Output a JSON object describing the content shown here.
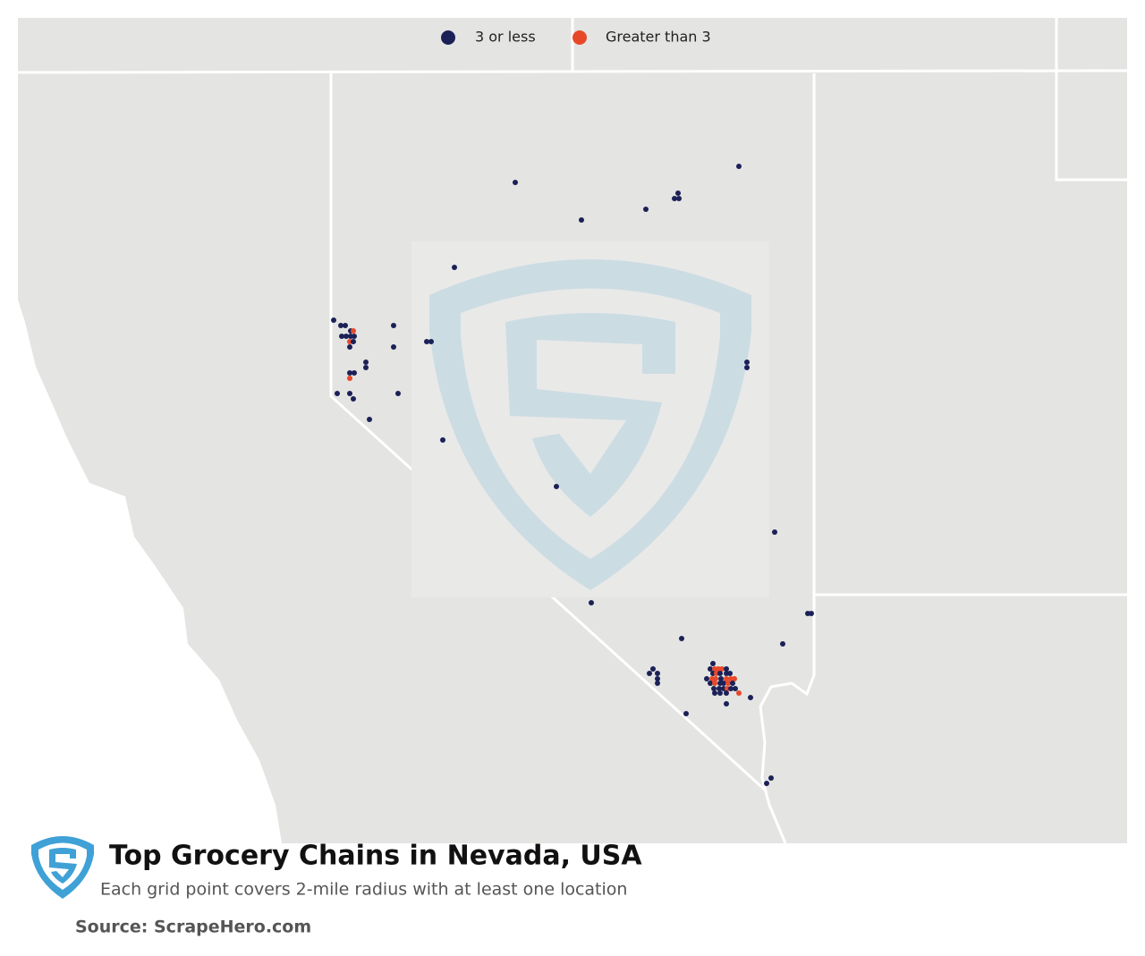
{
  "legend": {
    "items": [
      {
        "label": "3 or less",
        "color": "#1b2157"
      },
      {
        "label": "Greater than 3",
        "color": "#e8482a"
      }
    ]
  },
  "title": "Top Grocery Chains in Nevada, USA",
  "subtitle": "Each grid point covers 2-mile radius with at least one location",
  "source": "Source: ScrapeHero.com"
}
